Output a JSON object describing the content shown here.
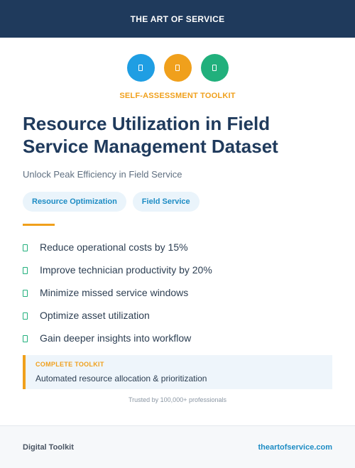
{
  "header": {
    "title": "THE ART OF SERVICE"
  },
  "icons": [
    {
      "name": "document-icon",
      "color": "#1f9ee3"
    },
    {
      "name": "document-icon",
      "color": "#f0a01c"
    },
    {
      "name": "document-icon",
      "color": "#21b07c"
    }
  ],
  "eyebrow": "SELF-ASSESSMENT TOOLKIT",
  "title": "Resource Utilization in Field Service Management Dataset",
  "subtitle": "Unlock Peak Efficiency in Field Service",
  "tags": [
    "Resource Optimization",
    "Field Service"
  ],
  "benefits": [
    "Reduce operational costs by 15%",
    "Improve technician productivity by 20%",
    "Minimize missed service windows",
    "Optimize asset utilization",
    "Gain deeper insights into workflow"
  ],
  "callout": {
    "label": "COMPLETE TOOLKIT",
    "text": "Automated resource allocation & prioritization"
  },
  "trusted": "Trusted by 100,000+ professionals",
  "footer": {
    "left": "Digital Toolkit",
    "right": "theartofservice.com"
  }
}
